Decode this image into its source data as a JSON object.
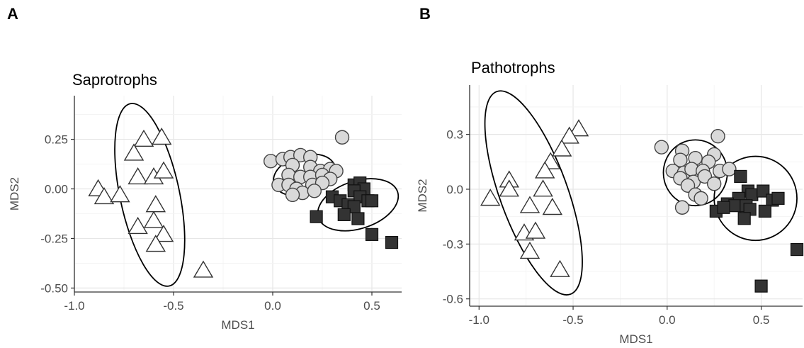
{
  "chart_data": [
    {
      "panel_label": "A",
      "type": "scatter",
      "title": "Saprotrophs",
      "xlabel": "MDS1",
      "ylabel": "MDS2",
      "xlim": [
        -1.0,
        0.65
      ],
      "ylim": [
        -0.52,
        0.47
      ],
      "xticks": [
        -1.0,
        -0.5,
        0.0,
        0.5
      ],
      "xtick_labels": [
        "-1.0",
        "-0.5",
        "0.0",
        "0.5"
      ],
      "yticks": [
        -0.5,
        -0.25,
        0.0,
        0.25
      ],
      "ytick_labels": [
        "-0.50",
        "-0.25",
        "0.00",
        "0.25"
      ],
      "grid": true,
      "series": [
        {
          "shape": "triangle",
          "color": "#ffffff",
          "points": [
            [
              -0.65,
              0.25
            ],
            [
              -0.56,
              0.26
            ],
            [
              -0.7,
              0.18
            ],
            [
              -0.68,
              0.06
            ],
            [
              -0.6,
              0.06
            ],
            [
              -0.55,
              0.09
            ],
            [
              -0.88,
              0.0
            ],
            [
              -0.85,
              -0.04
            ],
            [
              -0.77,
              -0.03
            ],
            [
              -0.59,
              -0.08
            ],
            [
              -0.68,
              -0.19
            ],
            [
              -0.6,
              -0.16
            ],
            [
              -0.55,
              -0.23
            ],
            [
              -0.59,
              -0.28
            ],
            [
              -0.35,
              -0.41
            ]
          ],
          "ellipse": {
            "cx": -0.62,
            "cy": -0.03,
            "rx": 0.15,
            "ry": 0.47,
            "angle": -12
          }
        },
        {
          "shape": "circle",
          "color": "#d9d9d9",
          "points": [
            [
              0.35,
              0.26
            ],
            [
              -0.01,
              0.14
            ],
            [
              0.05,
              0.15
            ],
            [
              0.09,
              0.16
            ],
            [
              0.14,
              0.17
            ],
            [
              0.19,
              0.16
            ],
            [
              0.1,
              0.12
            ],
            [
              0.19,
              0.11
            ],
            [
              0.24,
              0.09
            ],
            [
              0.29,
              0.1
            ],
            [
              0.32,
              0.09
            ],
            [
              0.08,
              0.07
            ],
            [
              0.14,
              0.06
            ],
            [
              0.19,
              0.06
            ],
            [
              0.25,
              0.07
            ],
            [
              0.29,
              0.05
            ],
            [
              0.03,
              0.02
            ],
            [
              0.08,
              0.02
            ],
            [
              0.12,
              0.0
            ],
            [
              0.2,
              0.02
            ],
            [
              0.25,
              0.03
            ],
            [
              0.15,
              -0.02
            ],
            [
              0.21,
              -0.01
            ],
            [
              0.1,
              -0.03
            ]
          ],
          "ellipse": {
            "cx": 0.16,
            "cy": 0.07,
            "rx": 0.16,
            "ry": 0.1,
            "angle": -16
          }
        },
        {
          "shape": "square",
          "color": "#333333",
          "points": [
            [
              0.41,
              0.02
            ],
            [
              0.44,
              0.03
            ],
            [
              0.46,
              0.0
            ],
            [
              0.41,
              -0.01
            ],
            [
              0.3,
              -0.04
            ],
            [
              0.34,
              -0.06
            ],
            [
              0.44,
              -0.04
            ],
            [
              0.48,
              -0.06
            ],
            [
              0.38,
              -0.08
            ],
            [
              0.41,
              -0.09
            ],
            [
              0.5,
              -0.06
            ],
            [
              0.22,
              -0.14
            ],
            [
              0.36,
              -0.13
            ],
            [
              0.43,
              -0.15
            ],
            [
              0.5,
              -0.23
            ],
            [
              0.6,
              -0.27
            ]
          ],
          "ellipse": {
            "cx": 0.43,
            "cy": -0.08,
            "rx": 0.21,
            "ry": 0.12,
            "angle": -18
          }
        }
      ]
    },
    {
      "panel_label": "B",
      "type": "scatter",
      "title": "Pathotrophs",
      "xlabel": "MDS1",
      "ylabel": "MDS2",
      "xlim": [
        -1.05,
        0.72
      ],
      "ylim": [
        -0.64,
        0.57
      ],
      "xticks": [
        -1.0,
        -0.5,
        0.0,
        0.5
      ],
      "xtick_labels": [
        "-1.0",
        "-0.5",
        "0.0",
        "0.5"
      ],
      "yticks": [
        -0.6,
        -0.3,
        0.0,
        0.3
      ],
      "ytick_labels": [
        "-0.6",
        "-0.3",
        "0.0",
        "0.3"
      ],
      "grid": true,
      "series": [
        {
          "shape": "triangle",
          "color": "#ffffff",
          "points": [
            [
              -0.47,
              0.33
            ],
            [
              -0.52,
              0.29
            ],
            [
              -0.56,
              0.22
            ],
            [
              -0.62,
              0.15
            ],
            [
              -0.65,
              0.1
            ],
            [
              -0.84,
              0.05
            ],
            [
              -0.84,
              0.0
            ],
            [
              -0.66,
              0.0
            ],
            [
              -0.94,
              -0.05
            ],
            [
              -0.73,
              -0.09
            ],
            [
              -0.61,
              -0.1
            ],
            [
              -0.76,
              -0.24
            ],
            [
              -0.7,
              -0.23
            ],
            [
              -0.73,
              -0.34
            ],
            [
              -0.57,
              -0.44
            ]
          ],
          "ellipse": {
            "cx": -0.71,
            "cy": -0.02,
            "rx": 0.18,
            "ry": 0.59,
            "angle": -20
          }
        },
        {
          "shape": "circle",
          "color": "#d9d9d9",
          "points": [
            [
              0.27,
              0.29
            ],
            [
              -0.03,
              0.23
            ],
            [
              0.08,
              0.21
            ],
            [
              0.25,
              0.19
            ],
            [
              0.07,
              0.16
            ],
            [
              0.15,
              0.17
            ],
            [
              0.22,
              0.15
            ],
            [
              0.03,
              0.1
            ],
            [
              0.09,
              0.09
            ],
            [
              0.13,
              0.11
            ],
            [
              0.19,
              0.1
            ],
            [
              0.28,
              0.1
            ],
            [
              0.33,
              0.11
            ],
            [
              0.07,
              0.06
            ],
            [
              0.14,
              0.04
            ],
            [
              0.2,
              0.07
            ],
            [
              0.11,
              0.02
            ],
            [
              0.25,
              0.03
            ],
            [
              0.15,
              -0.03
            ],
            [
              0.18,
              -0.05
            ],
            [
              0.08,
              -0.1
            ]
          ],
          "ellipse": {
            "cx": 0.15,
            "cy": 0.09,
            "rx": 0.17,
            "ry": 0.18,
            "angle": 0
          }
        },
        {
          "shape": "square",
          "color": "#333333",
          "points": [
            [
              0.39,
              0.07
            ],
            [
              0.43,
              -0.01
            ],
            [
              0.45,
              -0.03
            ],
            [
              0.51,
              -0.01
            ],
            [
              0.56,
              -0.06
            ],
            [
              0.59,
              -0.05
            ],
            [
              0.38,
              -0.05
            ],
            [
              0.32,
              -0.08
            ],
            [
              0.36,
              -0.09
            ],
            [
              0.26,
              -0.12
            ],
            [
              0.3,
              -0.1
            ],
            [
              0.42,
              -0.09
            ],
            [
              0.44,
              -0.11
            ],
            [
              0.52,
              -0.12
            ],
            [
              0.41,
              -0.16
            ],
            [
              0.69,
              -0.33
            ],
            [
              0.5,
              -0.53
            ]
          ],
          "ellipse": {
            "cx": 0.47,
            "cy": -0.05,
            "rx": 0.22,
            "ry": 0.23,
            "angle": 0
          }
        }
      ]
    }
  ]
}
